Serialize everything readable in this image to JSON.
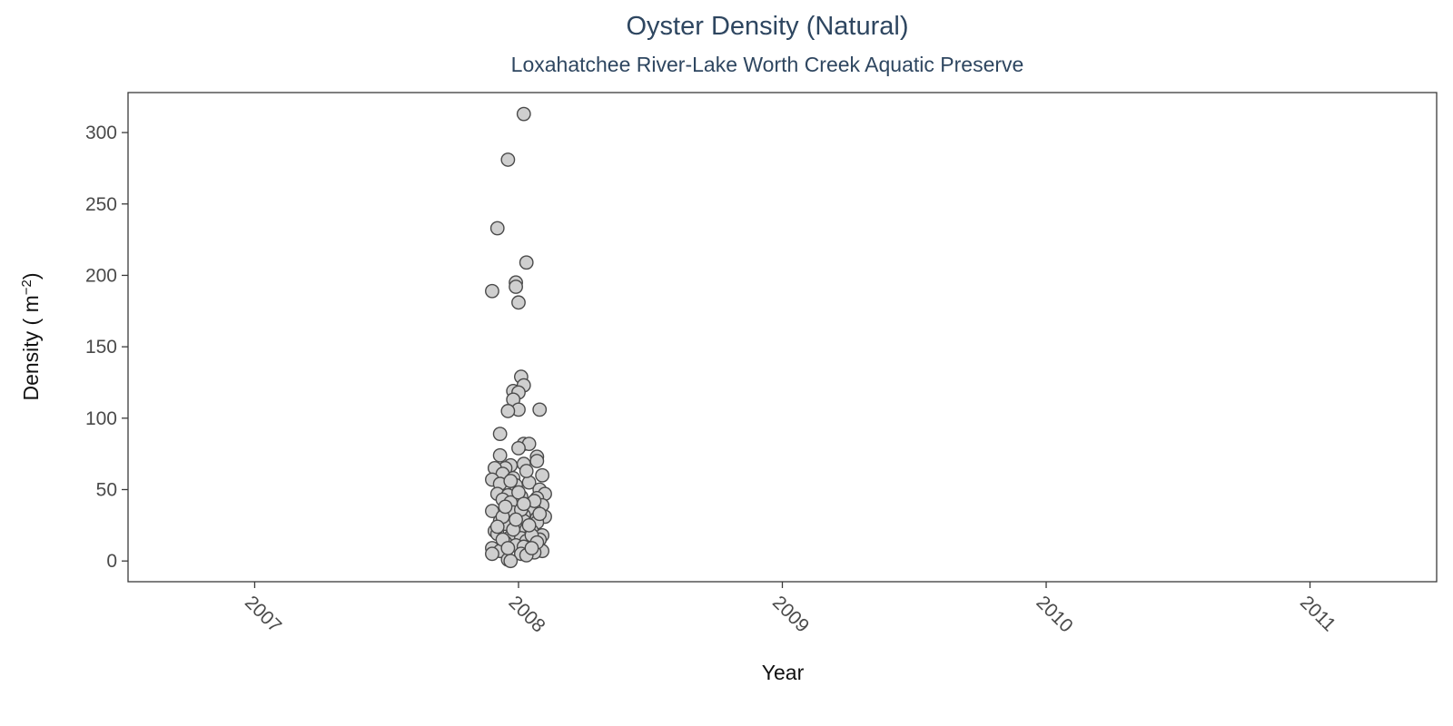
{
  "chart_data": {
    "type": "scatter",
    "title": "Oyster Density (Natural)",
    "subtitle": "Loxahatchee River-Lake Worth Creek Aquatic Preserve",
    "xlabel": "Year",
    "ylabel": {
      "base": "Density ( m",
      "sup": "−2",
      "close": ")"
    },
    "xlim": [
      2006.52,
      2011.48
    ],
    "ylim": [
      -14.5,
      328
    ],
    "x_ticks": [
      "2007",
      "2008",
      "2009",
      "2010",
      "2011"
    ],
    "x_tick_values": [
      2007,
      2008,
      2009,
      2010,
      2011
    ],
    "y_ticks": [
      "0",
      "50",
      "100",
      "150",
      "200",
      "250",
      "300"
    ],
    "y_tick_values": [
      0,
      50,
      100,
      150,
      200,
      250,
      300
    ],
    "grid": false,
    "legend": "none",
    "point_fill": "#cfcfcf",
    "point_stroke": "#4a4a4a",
    "points": [
      [
        2008.02,
        313
      ],
      [
        2007.96,
        281
      ],
      [
        2007.92,
        233
      ],
      [
        2008.03,
        209
      ],
      [
        2007.99,
        195
      ],
      [
        2007.99,
        192
      ],
      [
        2007.9,
        189
      ],
      [
        2008.0,
        181
      ],
      [
        2008.01,
        129
      ],
      [
        2008.02,
        123
      ],
      [
        2007.98,
        119
      ],
      [
        2008.0,
        118
      ],
      [
        2007.98,
        113
      ],
      [
        2008.08,
        106
      ],
      [
        2008.0,
        106
      ],
      [
        2007.96,
        105
      ],
      [
        2007.93,
        89
      ],
      [
        2008.02,
        82
      ],
      [
        2008.04,
        82
      ],
      [
        2008.0,
        79
      ],
      [
        2007.93,
        74
      ],
      [
        2008.07,
        73
      ],
      [
        2008.07,
        70
      ],
      [
        2008.02,
        68
      ],
      [
        2007.97,
        67
      ],
      [
        2007.95,
        65
      ],
      [
        2007.91,
        65
      ],
      [
        2007.94,
        61
      ],
      [
        2008.09,
        60
      ],
      [
        2007.98,
        58
      ],
      [
        2007.9,
        57
      ],
      [
        2008.04,
        55
      ],
      [
        2007.93,
        54
      ],
      [
        2007.99,
        53
      ],
      [
        2008.08,
        50
      ],
      [
        2008.1,
        47
      ],
      [
        2007.92,
        47
      ],
      [
        2007.96,
        46
      ],
      [
        2008.01,
        45
      ],
      [
        2008.07,
        44
      ],
      [
        2007.94,
        43
      ],
      [
        2007.97,
        41
      ],
      [
        2008.09,
        39
      ],
      [
        2008.03,
        37
      ],
      [
        2008.06,
        36
      ],
      [
        2007.9,
        35
      ],
      [
        2007.98,
        34
      ],
      [
        2008.02,
        32
      ],
      [
        2008.1,
        31
      ],
      [
        2008.07,
        30
      ],
      [
        2007.93,
        28
      ],
      [
        2008.02,
        28
      ],
      [
        2008.07,
        27
      ],
      [
        2007.95,
        26
      ],
      [
        2007.99,
        24
      ],
      [
        2008.03,
        22
      ],
      [
        2007.91,
        21
      ],
      [
        2008.05,
        21
      ],
      [
        2007.92,
        19
      ],
      [
        2008.09,
        18
      ],
      [
        2007.97,
        17
      ],
      [
        2008.01,
        16
      ],
      [
        2008.08,
        15
      ],
      [
        2008.03,
        14
      ],
      [
        2007.95,
        13
      ],
      [
        2008.06,
        12
      ],
      [
        2007.99,
        11
      ],
      [
        2008.02,
        10
      ],
      [
        2007.9,
        9
      ],
      [
        2008.09,
        7
      ],
      [
        2007.93,
        7
      ],
      [
        2008.06,
        6
      ],
      [
        2007.9,
        5
      ],
      [
        2008.01,
        5
      ],
      [
        2008.03,
        4
      ],
      [
        2007.96,
        1
      ],
      [
        2007.97,
        0
      ],
      [
        2007.94,
        31
      ],
      [
        2008.05,
        18
      ],
      [
        2007.98,
        22
      ],
      [
        2008.04,
        25
      ],
      [
        2007.95,
        38
      ],
      [
        2008.0,
        48
      ],
      [
        2007.92,
        24
      ],
      [
        2008.06,
        42
      ],
      [
        2007.97,
        56
      ],
      [
        2008.08,
        33
      ],
      [
        2007.94,
        15
      ],
      [
        2008.03,
        63
      ],
      [
        2008.01,
        36
      ],
      [
        2007.96,
        9
      ],
      [
        2008.07,
        13
      ],
      [
        2007.99,
        29
      ],
      [
        2008.02,
        40
      ],
      [
        2008.05,
        9
      ]
    ]
  }
}
